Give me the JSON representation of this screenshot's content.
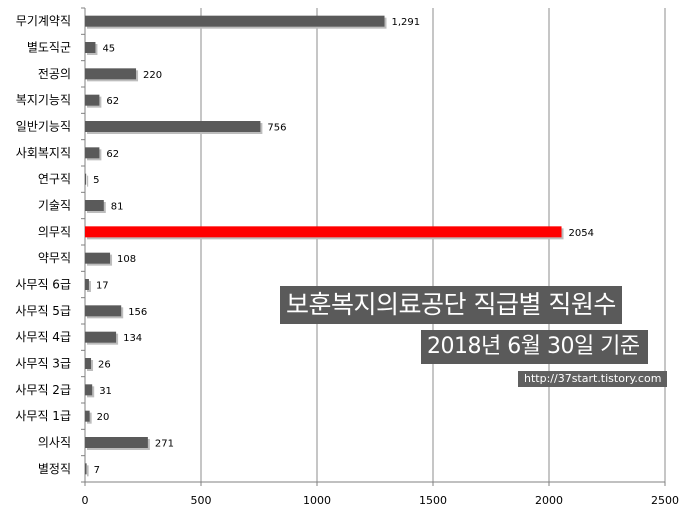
{
  "chart_data": {
    "type": "bar",
    "orientation": "horizontal",
    "categories": [
      "무기계약직",
      "별도직군",
      "전공의",
      "복지기능직",
      "일반기능직",
      "사회복지직",
      "연구직",
      "기술직",
      "의무직",
      "약무직",
      "사무직 6급",
      "사무직 5급",
      "사무직 4급",
      "사무직 3급",
      "사무직 2급",
      "사무직 1급",
      "의사직",
      "별정직"
    ],
    "values": [
      1291,
      45,
      220,
      62,
      756,
      62,
      5,
      81,
      2054,
      108,
      17,
      156,
      134,
      26,
      31,
      20,
      271,
      7
    ],
    "value_labels": [
      "1,291",
      "45",
      "220",
      "62",
      "756",
      "62",
      "5",
      "81",
      "2054",
      "108",
      "17",
      "156",
      "134",
      "26",
      "31",
      "20",
      "271",
      "7"
    ],
    "highlight_index": 8,
    "xlim": [
      0,
      2500
    ],
    "x_ticks": [
      0,
      500,
      1000,
      1500,
      2000,
      2500
    ],
    "grid": "vertical",
    "legend": "none",
    "colors": {
      "bar": "#5a5a5a",
      "highlight": "#ff0000",
      "grid": "#8c8c8c",
      "axis": "#808080"
    },
    "title": "",
    "xlabel": "",
    "ylabel": ""
  },
  "overlay": {
    "title_line1": "보훈복지의료공단 직급별 직원수",
    "title_line2": "2018년 6월 30일 기준",
    "source_url": "http://37start.tistory.com"
  }
}
